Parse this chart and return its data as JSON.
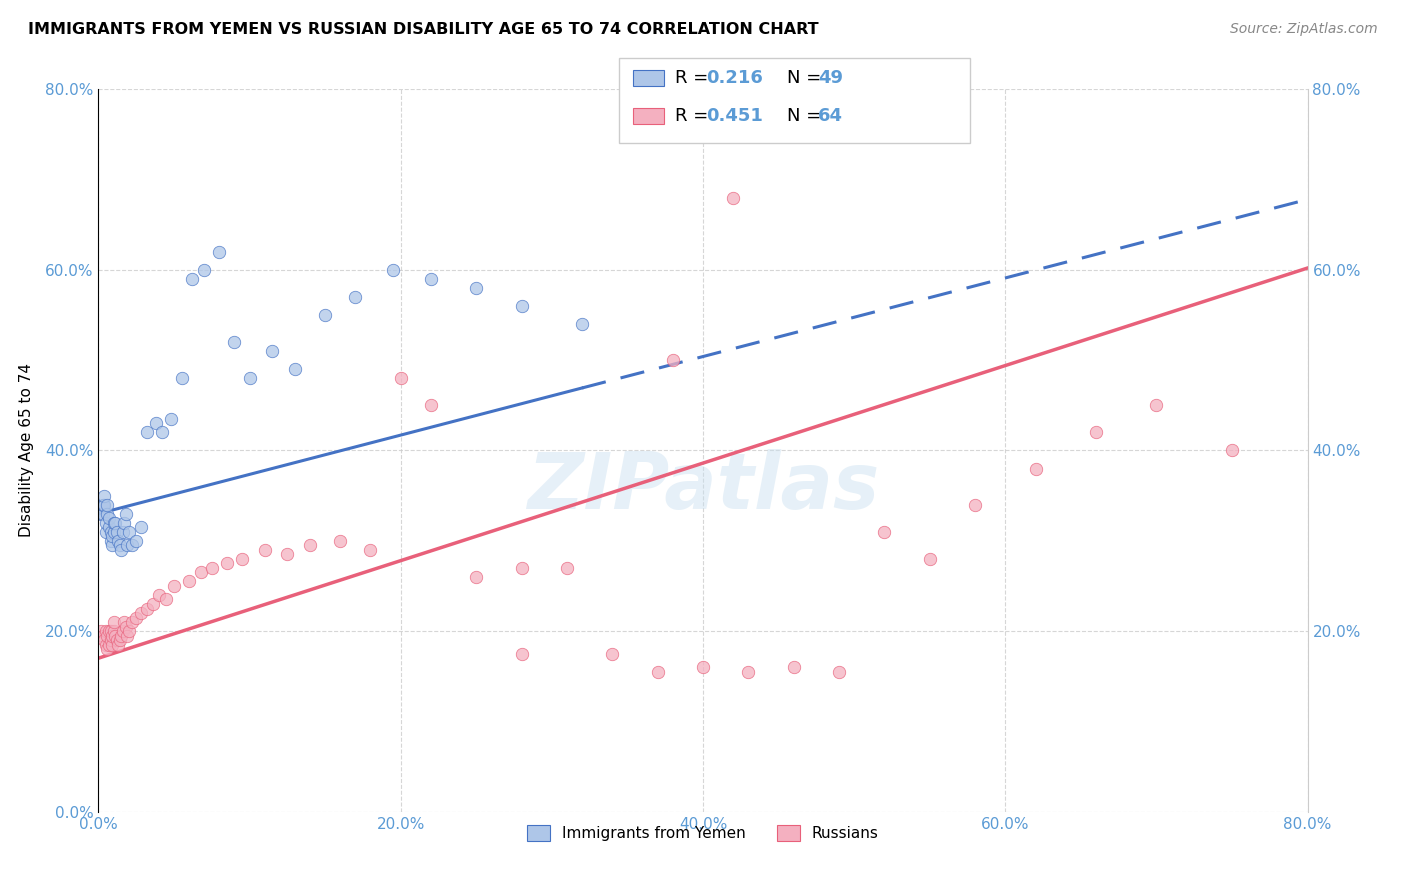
{
  "title": "IMMIGRANTS FROM YEMEN VS RUSSIAN DISABILITY AGE 65 TO 74 CORRELATION CHART",
  "source": "Source: ZipAtlas.com",
  "ylabel": "Disability Age 65 to 74",
  "xlim": [
    0,
    0.8
  ],
  "ylim": [
    0,
    0.8
  ],
  "xticks": [
    0.0,
    0.2,
    0.4,
    0.6,
    0.8
  ],
  "yticks": [
    0.0,
    0.2,
    0.4,
    0.6,
    0.8
  ],
  "xticklabels": [
    "0.0%",
    "20.0%",
    "40.0%",
    "60.0%",
    "80.0%"
  ],
  "yticklabels": [
    "0.0%",
    "20.0%",
    "40.0%",
    "60.0%",
    "80.0%"
  ],
  "right_yticks": [
    0.2,
    0.4,
    0.6,
    0.8
  ],
  "right_yticklabels": [
    "20.0%",
    "40.0%",
    "60.0%",
    "80.0%"
  ],
  "legend_label1": "Immigrants from Yemen",
  "legend_label2": "Russians",
  "legend_R1": "0.216",
  "legend_N1": "49",
  "legend_R2": "0.451",
  "legend_N2": "64",
  "color1": "#aec6e8",
  "color2": "#f4b0c0",
  "line_color1": "#4472c4",
  "line_color2": "#e8607a",
  "watermark": "ZIPatlas",
  "background_color": "#ffffff",
  "yemen_x": [
    0.002,
    0.003,
    0.003,
    0.004,
    0.004,
    0.005,
    0.005,
    0.006,
    0.006,
    0.007,
    0.007,
    0.008,
    0.008,
    0.009,
    0.009,
    0.01,
    0.01,
    0.011,
    0.012,
    0.013,
    0.014,
    0.015,
    0.016,
    0.017,
    0.018,
    0.019,
    0.02,
    0.022,
    0.025,
    0.028,
    0.032,
    0.038,
    0.042,
    0.048,
    0.055,
    0.062,
    0.07,
    0.08,
    0.09,
    0.1,
    0.115,
    0.13,
    0.15,
    0.17,
    0.195,
    0.22,
    0.25,
    0.28,
    0.32
  ],
  "yemen_y": [
    0.33,
    0.33,
    0.34,
    0.34,
    0.35,
    0.31,
    0.32,
    0.33,
    0.34,
    0.315,
    0.325,
    0.3,
    0.31,
    0.295,
    0.305,
    0.31,
    0.32,
    0.32,
    0.31,
    0.3,
    0.295,
    0.29,
    0.31,
    0.32,
    0.33,
    0.295,
    0.31,
    0.295,
    0.3,
    0.315,
    0.42,
    0.43,
    0.42,
    0.435,
    0.48,
    0.59,
    0.6,
    0.62,
    0.52,
    0.48,
    0.51,
    0.49,
    0.55,
    0.57,
    0.6,
    0.59,
    0.58,
    0.56,
    0.54
  ],
  "russia_x": [
    0.002,
    0.003,
    0.004,
    0.005,
    0.005,
    0.006,
    0.006,
    0.007,
    0.007,
    0.008,
    0.008,
    0.009,
    0.009,
    0.01,
    0.01,
    0.011,
    0.012,
    0.013,
    0.014,
    0.015,
    0.016,
    0.017,
    0.018,
    0.019,
    0.02,
    0.022,
    0.025,
    0.028,
    0.032,
    0.036,
    0.04,
    0.045,
    0.05,
    0.06,
    0.068,
    0.075,
    0.085,
    0.095,
    0.11,
    0.125,
    0.14,
    0.16,
    0.18,
    0.2,
    0.22,
    0.25,
    0.28,
    0.31,
    0.34,
    0.37,
    0.4,
    0.43,
    0.46,
    0.49,
    0.52,
    0.55,
    0.58,
    0.62,
    0.66,
    0.7,
    0.75,
    0.38,
    0.42,
    0.28
  ],
  "russia_y": [
    0.2,
    0.195,
    0.19,
    0.185,
    0.2,
    0.18,
    0.195,
    0.185,
    0.2,
    0.19,
    0.2,
    0.185,
    0.195,
    0.2,
    0.21,
    0.195,
    0.19,
    0.185,
    0.19,
    0.195,
    0.2,
    0.21,
    0.205,
    0.195,
    0.2,
    0.21,
    0.215,
    0.22,
    0.225,
    0.23,
    0.24,
    0.235,
    0.25,
    0.255,
    0.265,
    0.27,
    0.275,
    0.28,
    0.29,
    0.285,
    0.295,
    0.3,
    0.29,
    0.48,
    0.45,
    0.26,
    0.27,
    0.27,
    0.175,
    0.155,
    0.16,
    0.155,
    0.16,
    0.155,
    0.31,
    0.28,
    0.34,
    0.38,
    0.42,
    0.45,
    0.4,
    0.5,
    0.68,
    0.175
  ]
}
